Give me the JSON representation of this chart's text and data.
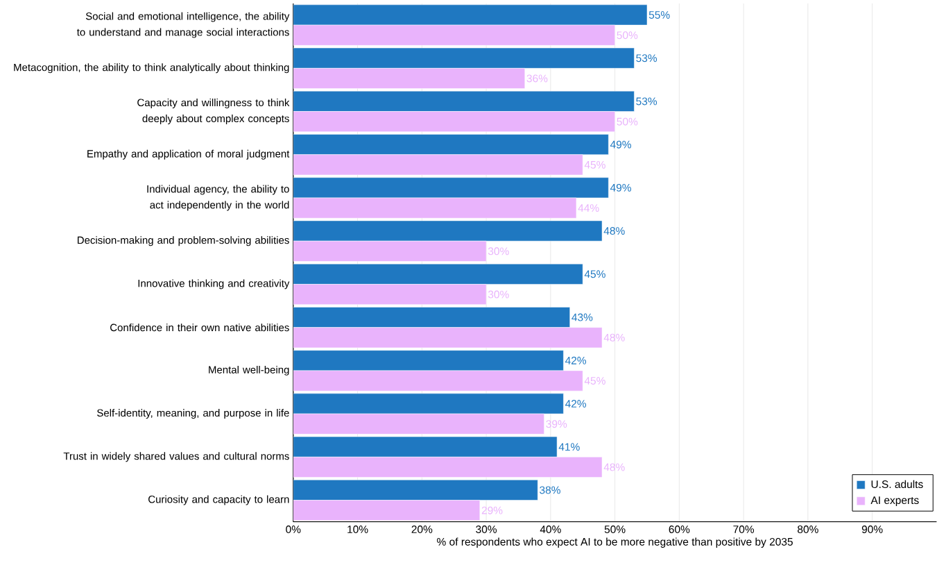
{
  "chart_data": {
    "type": "bar",
    "orientation": "horizontal",
    "xlabel": "% of respondents who expect AI to be more negative than positive by 2035",
    "categories": [
      "Social and emotional intelligence, the ability to understand and manage social interactions",
      "Metacognition, the ability to think analytically about thinking",
      "Capacity and willingness to think deeply about complex concepts",
      "Empathy and application of moral judgment",
      "Individual agency, the ability to act independently in the world",
      "Decision-making and problem-solving abilities",
      "Innovative thinking and creativity",
      "Confidence in their own native abilities",
      "Mental well-being",
      "Self-identity, meaning, and purpose in life",
      "Trust in widely shared values and cultural norms",
      "Curiosity and capacity to learn"
    ],
    "series": [
      {
        "name": "U.S. adults",
        "color": "#1f78c1",
        "values": [
          55,
          53,
          53,
          49,
          49,
          48,
          45,
          43,
          42,
          42,
          41,
          38
        ],
        "value_labels": [
          "55%",
          "53%",
          "53%",
          "49%",
          "49%",
          "48%",
          "45%",
          "43%",
          "42%",
          "42%",
          "41%",
          "38%"
        ]
      },
      {
        "name": "AI experts",
        "color": "#e9b3fc",
        "values": [
          50,
          36,
          50,
          45,
          44,
          30,
          30,
          48,
          45,
          39,
          48,
          29
        ],
        "value_labels": [
          "50%",
          "36%",
          "50%",
          "45%",
          "44%",
          "30%",
          "30%",
          "48%",
          "45%",
          "39%",
          "48%",
          "29%"
        ]
      }
    ],
    "xlim": [
      0,
      100
    ],
    "xticks": [
      {
        "value": 0,
        "label": "0%"
      },
      {
        "value": 10,
        "label": "10%"
      },
      {
        "value": 20,
        "label": "20%"
      },
      {
        "value": 30,
        "label": "30%"
      },
      {
        "value": 40,
        "label": "40%"
      },
      {
        "value": 50,
        "label": "50%"
      },
      {
        "value": 60,
        "label": "60%"
      },
      {
        "value": 70,
        "label": "70%"
      },
      {
        "value": 80,
        "label": "80%"
      },
      {
        "value": 90,
        "label": "90%"
      }
    ],
    "grid": "x",
    "legend": "bottom right"
  }
}
